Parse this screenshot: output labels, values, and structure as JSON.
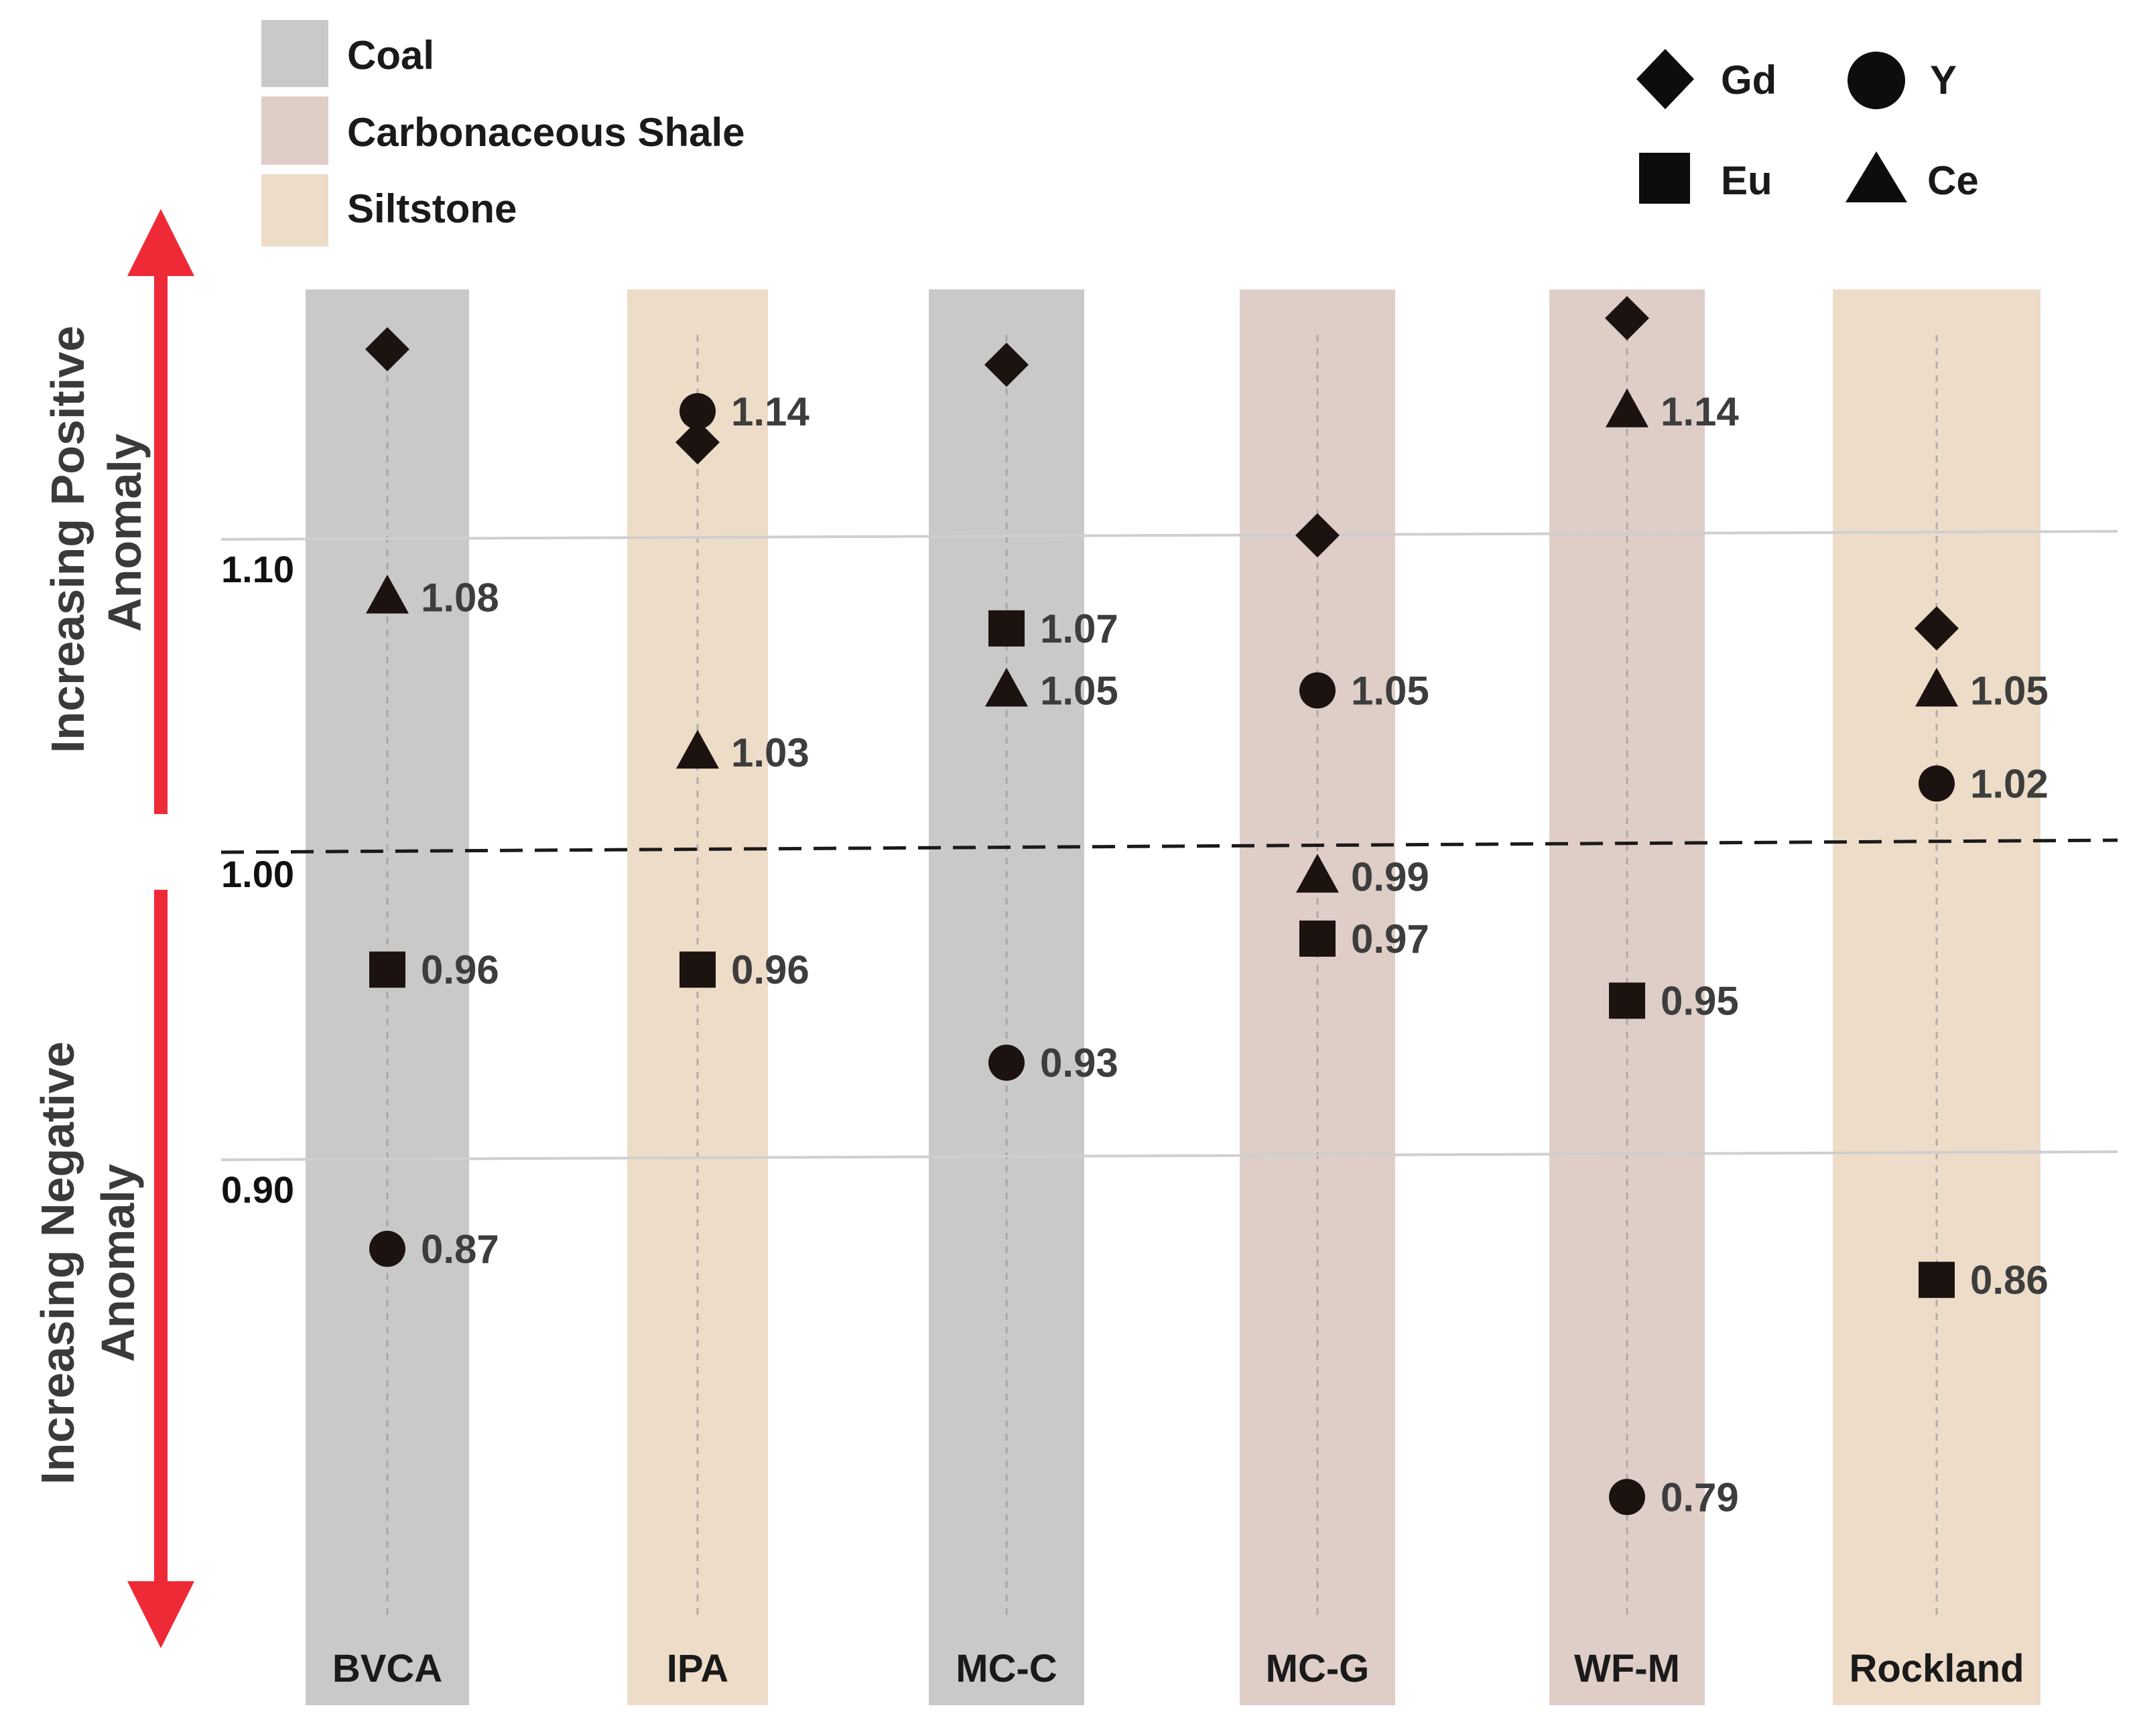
{
  "chart_data": {
    "type": "scatter",
    "title": "",
    "xlabel": "",
    "ylabel": "",
    "reference_value": 1.0,
    "ylim": [
      0.7,
      1.3
    ],
    "y_ticks": [
      {
        "value": 1.1,
        "label": "1.10"
      },
      {
        "value": 1.0,
        "label": "1.00"
      },
      {
        "value": 0.9,
        "label": "0.90"
      }
    ],
    "axis_annotations": {
      "positive": [
        "Increasing Positive",
        "Anomaly"
      ],
      "negative": [
        "Increasing Negative",
        "Anomaly"
      ]
    },
    "lithology_legend": [
      {
        "name": "Coal",
        "color": "#c9c9c9"
      },
      {
        "name": "Carbonaceous Shale",
        "color": "#dfcdc7"
      },
      {
        "name": "Siltstone",
        "color": "#eddcc8"
      }
    ],
    "symbol_legend": [
      {
        "name": "Gd",
        "symbol": "diamond"
      },
      {
        "name": "Y",
        "symbol": "circle"
      },
      {
        "name": "Eu",
        "symbol": "square"
      },
      {
        "name": "Ce",
        "symbol": "triangle"
      }
    ],
    "categories": [
      "BVCA",
      "IPA",
      "MC-C",
      "MC-G",
      "WF-M",
      "Rockland"
    ],
    "category_lithology": [
      "Coal",
      "Siltstone",
      "Coal",
      "Carbonaceous Shale",
      "Carbonaceous Shale",
      "Siltstone"
    ],
    "series": [
      {
        "name": "Gd",
        "symbol": "diamond",
        "values": [
          1.16,
          1.13,
          1.155,
          1.1,
          1.17,
          1.07
        ],
        "labels": [
          "",
          "",
          "",
          "",
          "",
          ""
        ]
      },
      {
        "name": "Y",
        "symbol": "circle",
        "values": [
          0.87,
          1.14,
          0.93,
          1.05,
          0.79,
          1.02
        ],
        "labels": [
          "0.87",
          "1.14",
          "0.93",
          "1.05",
          "0.79",
          "1.02"
        ]
      },
      {
        "name": "Eu",
        "symbol": "square",
        "values": [
          0.96,
          0.96,
          1.07,
          0.97,
          0.95,
          0.86
        ],
        "labels": [
          "0.96",
          "0.96",
          "1.07",
          "0.97",
          "0.95",
          "0.86"
        ]
      },
      {
        "name": "Ce",
        "symbol": "triangle",
        "values": [
          1.08,
          1.03,
          1.05,
          0.99,
          1.14,
          1.05
        ],
        "labels": [
          "1.08",
          "1.03",
          "1.05",
          "0.99",
          "1.14",
          "1.05"
        ]
      }
    ]
  }
}
